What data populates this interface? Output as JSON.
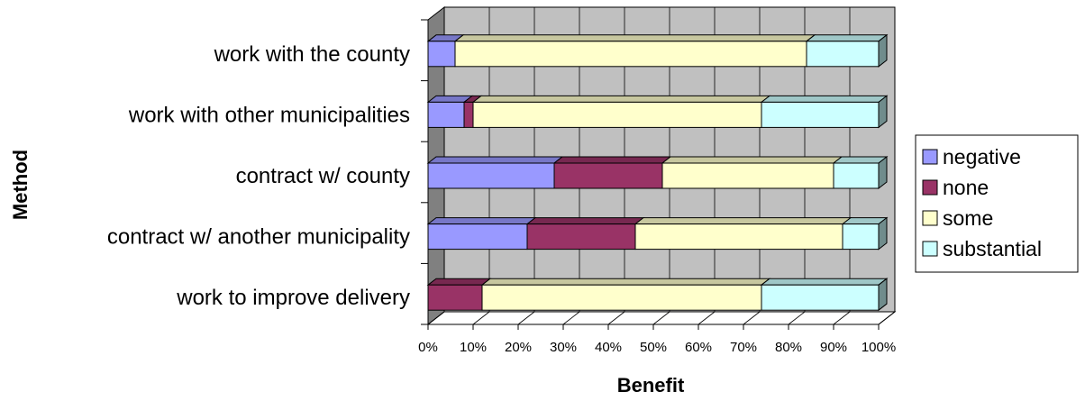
{
  "chart_data": {
    "type": "bar",
    "orientation": "horizontal",
    "stacked": "percent",
    "three_d": true,
    "categories": [
      "work with the county",
      "work with other municipalities",
      "contract w/ county",
      "contract w/ another municipality",
      "work to improve delivery"
    ],
    "series": [
      {
        "name": "negative",
        "color": "#9999ff",
        "values": [
          6,
          8,
          28,
          22,
          0
        ]
      },
      {
        "name": "none",
        "color": "#993366",
        "values": [
          0,
          2,
          24,
          24,
          12
        ]
      },
      {
        "name": "some",
        "color": "#ffffcc",
        "values": [
          78,
          64,
          38,
          46,
          62
        ]
      },
      {
        "name": "substantial",
        "color": "#ccffff",
        "values": [
          16,
          26,
          10,
          8,
          26
        ]
      }
    ],
    "xlim": [
      0,
      100
    ],
    "x_ticks": [
      "0%",
      "10%",
      "20%",
      "30%",
      "40%",
      "50%",
      "60%",
      "70%",
      "80%",
      "90%",
      "100%"
    ],
    "xlabel": "Benefit",
    "ylabel": "Method",
    "grid": true,
    "legend_position": "right",
    "wall_color": "#c0c0c0"
  }
}
